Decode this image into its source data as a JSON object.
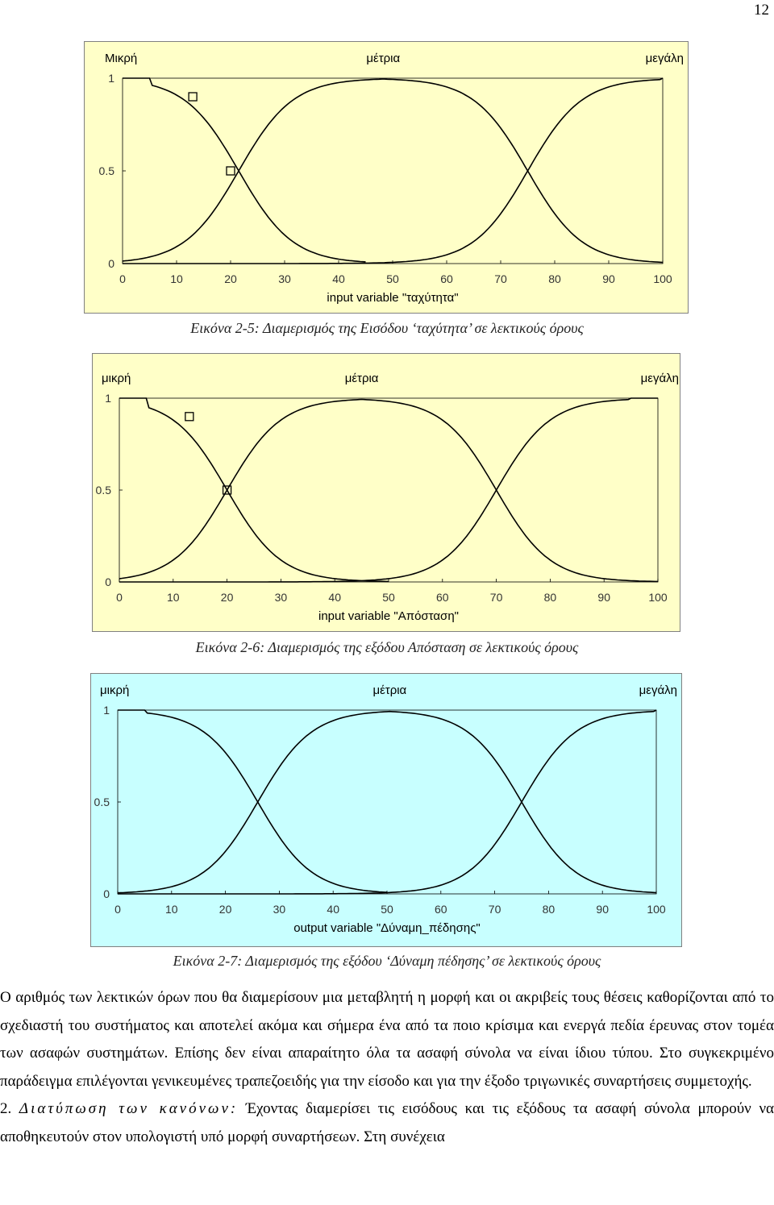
{
  "page_number": "12",
  "figures": [
    {
      "caption": "Εικόνα 2-5: Διαμερισμός της Εισόδου ‘ταχύτητα’ σε λεκτικούς όρους",
      "background": "#ffffc8",
      "chart_data": {
        "type": "line",
        "xlabel": "input variable \"ταχύτητα\"",
        "xlim": [
          0,
          100
        ],
        "ylim": [
          0,
          1
        ],
        "x_ticks": [
          0,
          10,
          20,
          30,
          40,
          50,
          60,
          70,
          80,
          90,
          100
        ],
        "y_ticks": [
          "0",
          "0.5",
          "1"
        ],
        "series": [
          {
            "name": "Μικρή",
            "shape": "falling",
            "plateau_end": 5,
            "crossover": 21.5,
            "width": 5,
            "tail_end": 45
          },
          {
            "name": "μέτρια",
            "shape": "bell",
            "rise_crossover": 21.5,
            "fall_crossover": 75,
            "width": 5,
            "tail_start": 48
          },
          {
            "name": "μεγάλη",
            "shape": "rising",
            "crossover": 75,
            "width": 5,
            "plateau_start": 100
          }
        ],
        "markers": [
          {
            "x": 13,
            "y": 0.9
          },
          {
            "x": 20,
            "y": 0.5
          }
        ]
      }
    },
    {
      "caption": "Εικόνα 2-6: Διαμερισμός της εξόδου Απόσταση σε λεκτικούς όρους",
      "background": "#ffffc8",
      "chart_data": {
        "type": "line",
        "xlabel": "input variable \"Απόσταση\"",
        "xlim": [
          0,
          100
        ],
        "ylim": [
          0,
          1
        ],
        "x_ticks": [
          0,
          10,
          20,
          30,
          40,
          50,
          60,
          70,
          80,
          90,
          100
        ],
        "y_ticks": [
          "0",
          "0.5",
          "1"
        ],
        "series": [
          {
            "name": "μικρή",
            "shape": "falling",
            "plateau_end": 5,
            "crossover": 20,
            "width": 5,
            "tail_end": 50
          },
          {
            "name": "μέτρια",
            "shape": "bell",
            "rise_crossover": 20,
            "fall_crossover": 70,
            "width": 5,
            "tail_start": 50
          },
          {
            "name": "μεγάλη",
            "shape": "rising",
            "crossover": 70,
            "width": 5,
            "plateau_start": 95
          }
        ],
        "markers": [
          {
            "x": 13,
            "y": 0.9
          },
          {
            "x": 20,
            "y": 0.5
          }
        ]
      }
    },
    {
      "caption": "Εικόνα 2-7: Διαμερισμός της εξόδου ‘Δύναμη πέδησης’ σε λεκτικούς όρους",
      "background": "#c8ffff",
      "chart_data": {
        "type": "line",
        "xlabel": "output variable \"Δύναμη_πέδησης\"",
        "xlim": [
          0,
          100
        ],
        "ylim": [
          0,
          1
        ],
        "x_ticks": [
          0,
          10,
          20,
          30,
          40,
          50,
          60,
          70,
          80,
          90,
          100
        ],
        "y_ticks": [
          "0",
          "0.5",
          "1"
        ],
        "series": [
          {
            "name": "μικρή",
            "shape": "falling",
            "plateau_end": 5,
            "crossover": 26,
            "width": 5,
            "tail_end": 50
          },
          {
            "name": "μέτρια",
            "shape": "bell",
            "rise_crossover": 26,
            "fall_crossover": 75,
            "width": 5,
            "tail_start": 50
          },
          {
            "name": "μεγάλη",
            "shape": "rising",
            "crossover": 75,
            "width": 5,
            "plateau_start": 100
          }
        ],
        "markers": []
      }
    }
  ],
  "text": {
    "p1": "Ο αριθμός των λεκτικών όρων που θα διαμερίσουν μια μεταβλητή η μορφή και οι ακριβείς τους θέσεις καθορίζονται από το σχεδιαστή του συστήματος και αποτελεί ακόμα και σήμερα ένα από τα ποιο κρίσιμα και ενεργά πεδία έρευνας στον τομέα των ασαφών συστημάτων. Επίσης δεν είναι απαραίτητο όλα τα ασαφή σύνολα να είναι ίδιου τύπου. Στο συγκεκριμένο παράδειγμα επιλέγονται γενικευμένες τραπεζοειδής για την είσοδο και για την έξοδο τριγωνικές συναρτήσεις συμμετοχής.",
    "p2_number": "2.",
    "p2_heading": "Διατύπωση των κανόνων:",
    "p2_body": " Έχοντας  διαμερίσει τις εισόδους και τις εξόδους τα ασαφή σύνολα μπορούν να αποθηκευτούν στον υπολογιστή υπό μορφή συναρτήσεων. Στη συνέχεια"
  }
}
